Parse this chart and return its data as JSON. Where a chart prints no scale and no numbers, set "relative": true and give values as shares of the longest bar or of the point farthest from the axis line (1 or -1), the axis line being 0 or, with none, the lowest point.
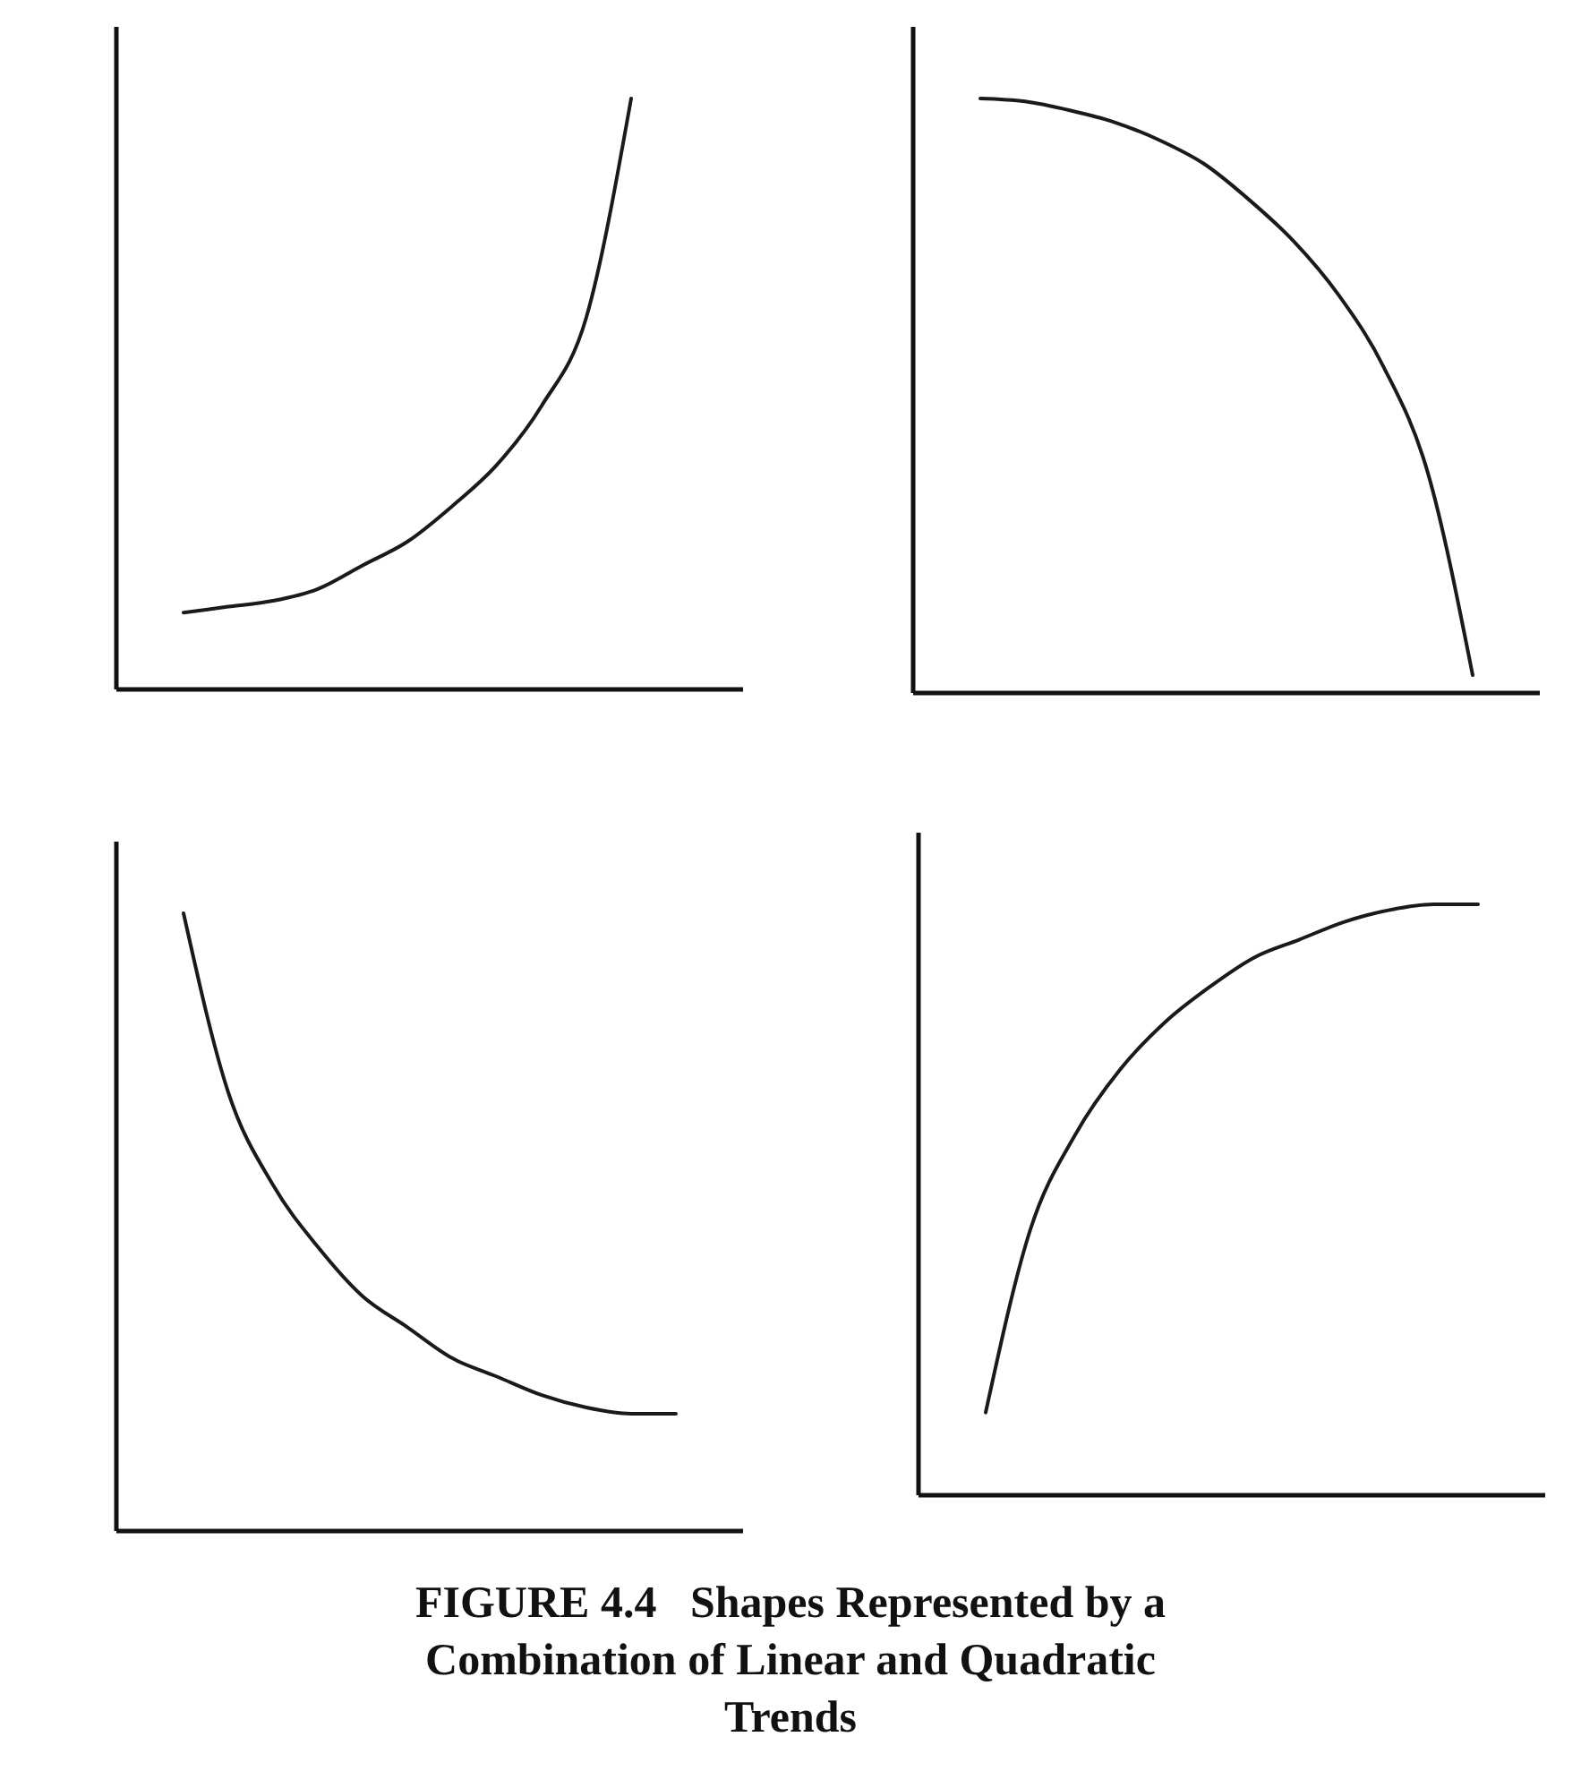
{
  "chart_data": [
    {
      "type": "line",
      "relative": true,
      "categories": [
        null,
        null,
        null,
        null,
        null,
        null,
        null,
        null,
        null,
        null,
        null,
        null,
        null,
        null
      ],
      "series": [
        {
          "color": "#1a1a1a",
          "values": [
            null,
            0.13,
            0.14,
            0.15,
            0.17,
            0.21,
            0.25,
            0.31,
            0.38,
            0.48,
            0.63,
            1.0,
            null,
            null
          ]
        }
      ]
    },
    {
      "type": "line",
      "relative": true,
      "categories": [
        null,
        null,
        null,
        null,
        null,
        null,
        null,
        null,
        null,
        null,
        null,
        null,
        null,
        null
      ],
      "series": [
        {
          "color": "#1a1a1a",
          "values": [
            null,
            1.0,
            0.995,
            0.98,
            0.96,
            0.93,
            0.89,
            0.83,
            0.76,
            0.67,
            0.55,
            0.37,
            0.03,
            null
          ]
        }
      ]
    },
    {
      "type": "line",
      "relative": true,
      "categories": [
        null,
        null,
        null,
        null,
        null,
        null,
        null,
        null,
        null,
        null,
        null,
        null,
        null,
        null
      ],
      "series": [
        {
          "color": "#1a1a1a",
          "values": [
            null,
            1.0,
            0.71,
            0.56,
            0.46,
            0.38,
            0.33,
            0.28,
            0.25,
            0.22,
            0.2,
            0.19,
            0.19,
            null
          ]
        }
      ]
    },
    {
      "type": "line",
      "relative": true,
      "categories": [
        null,
        null,
        null,
        null,
        null,
        null,
        null,
        null,
        null,
        null,
        null,
        null,
        null,
        null
      ],
      "series": [
        {
          "color": "#1a1a1a",
          "values": [
            null,
            0.14,
            0.45,
            0.61,
            0.72,
            0.8,
            0.86,
            0.91,
            0.94,
            0.97,
            0.99,
            1.0,
            1.0,
            null
          ]
        }
      ],
      "annotations": [
        "FIGURE 4.4   Shapes Represented by a Combination of Linear and Quadratic Trends"
      ]
    }
  ]
}
